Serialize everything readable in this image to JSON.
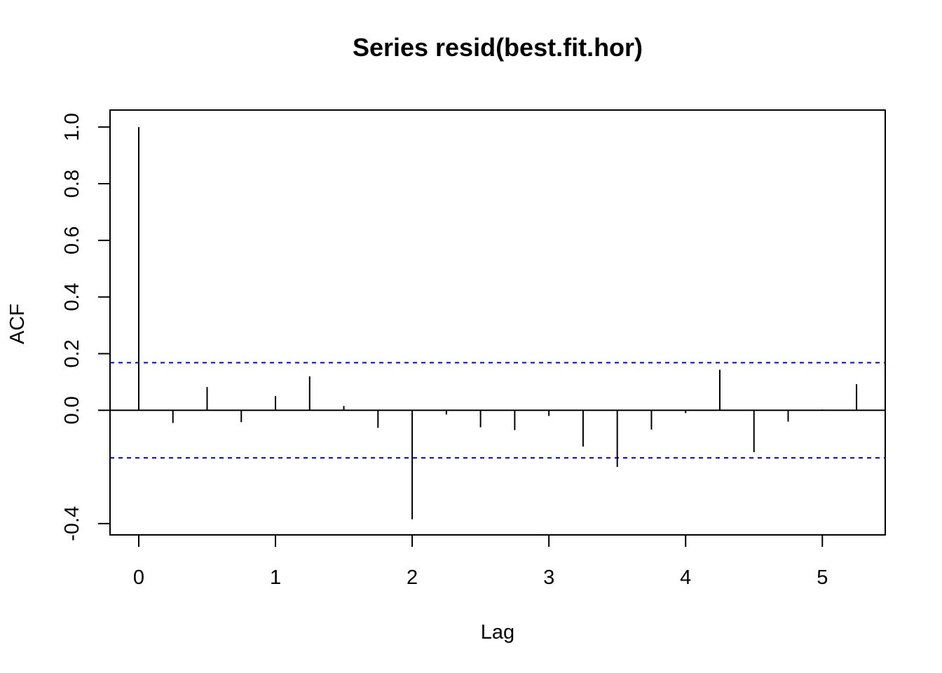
{
  "chart_data": {
    "type": "bar",
    "title": "Series  resid(best.fit.hor)",
    "xlabel": "Lag",
    "ylabel": "ACF",
    "xlim": [
      -0.21,
      5.46
    ],
    "ylim": [
      -0.44,
      1.06
    ],
    "x_ticks": [
      0,
      1,
      2,
      3,
      4,
      5
    ],
    "y_ticks": [
      -0.4,
      0.0,
      0.2,
      0.4,
      0.6,
      0.8,
      1.0
    ],
    "y_tick_labels": [
      "-0.4",
      "0.0",
      "0.2",
      "0.4",
      "0.6",
      "0.8",
      "1.0"
    ],
    "x_tick_labels": [
      "0",
      "1",
      "2",
      "3",
      "4",
      "5"
    ],
    "lags": [
      0,
      0.25,
      0.5,
      0.75,
      1.0,
      1.25,
      1.5,
      1.75,
      2.0,
      2.25,
      2.5,
      2.75,
      3.0,
      3.25,
      3.5,
      3.75,
      4.0,
      4.25,
      4.5,
      4.75,
      5.0,
      5.25
    ],
    "values": [
      1.0,
      -0.045,
      0.082,
      -0.042,
      0.05,
      0.12,
      0.015,
      -0.062,
      -0.385,
      -0.015,
      -0.06,
      -0.07,
      -0.02,
      -0.128,
      -0.2,
      -0.068,
      -0.01,
      0.143,
      -0.148,
      -0.04,
      0.003,
      0.092
    ],
    "ci_upper": 0.168,
    "ci_lower": -0.168,
    "ci_color": "#0000ee",
    "grid": false,
    "legend": "none"
  }
}
